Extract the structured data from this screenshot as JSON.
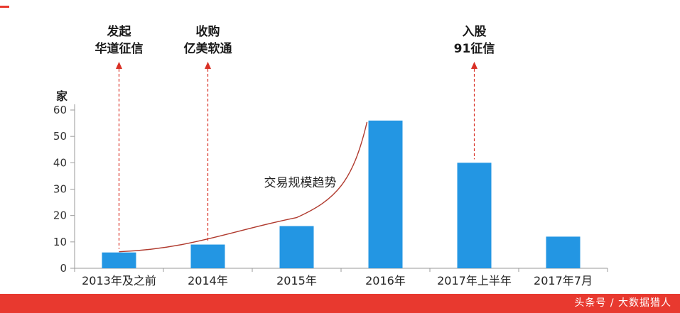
{
  "chart_data": {
    "type": "bar",
    "title": "",
    "ylabel": "家",
    "categories": [
      "2013年及之前",
      "2014年",
      "2015年",
      "2016年",
      "2017年上半年",
      "2017年7月"
    ],
    "values": [
      6,
      9,
      16,
      56,
      40,
      12
    ],
    "ylim": [
      0,
      60
    ],
    "yticks": [
      0,
      10,
      20,
      30,
      40,
      50,
      60
    ],
    "grid": false,
    "legend_position": "none",
    "bar_color": "#2396e3",
    "axis_color": "#9a9a9a",
    "tick_label_color": "#333333",
    "trend": {
      "label": "交易规模趋势",
      "color": "#b03a2e"
    },
    "annotation_color": "#d93025",
    "annotations": [
      {
        "lines": [
          "发起",
          "华道征信"
        ],
        "category_index": 0
      },
      {
        "lines": [
          "收购",
          "亿美软通"
        ],
        "category_index": 1
      },
      {
        "lines": [
          "入股",
          "91征信"
        ],
        "category_index": 4
      }
    ]
  },
  "footer": {
    "text": "头条号 / 大数据猎人",
    "background": "#e8392f",
    "text_color": "#ffffff"
  },
  "decoration": {
    "color": "#e8392f"
  }
}
